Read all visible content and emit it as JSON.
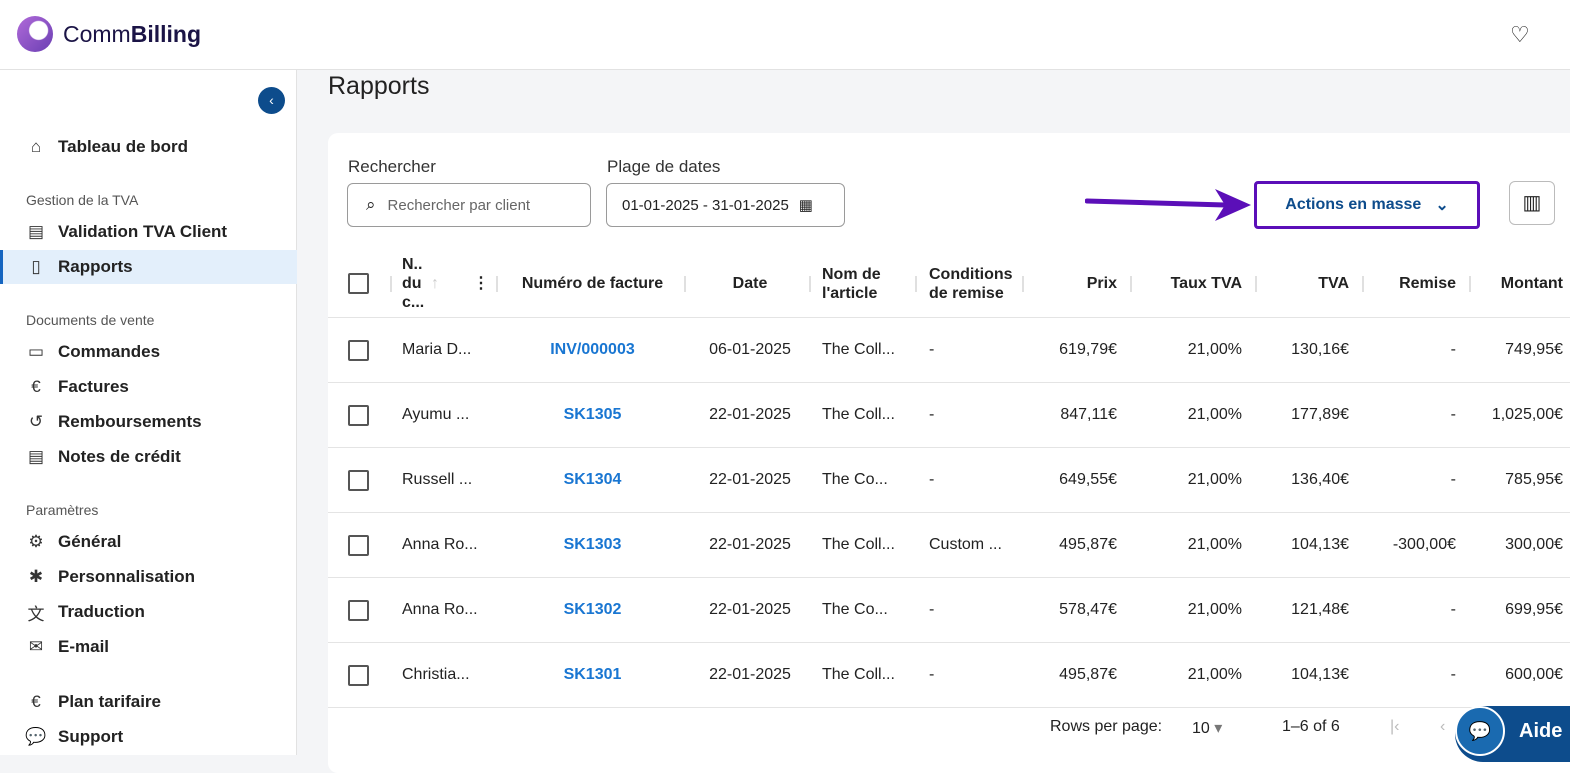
{
  "app": {
    "name_light": "Comm",
    "name_bold": "Billing"
  },
  "sidebar": {
    "dashboard": "Tableau de bord",
    "sec_tva": "Gestion de la TVA",
    "validation": "Validation TVA Client",
    "rapports": "Rapports",
    "sec_docs": "Documents de vente",
    "commandes": "Commandes",
    "factures": "Factures",
    "remboursements": "Remboursements",
    "notes": "Notes de crédit",
    "sec_params": "Paramètres",
    "general": "Général",
    "perso": "Personnalisation",
    "traduction": "Traduction",
    "email": "E-mail",
    "plan": "Plan tarifaire",
    "support": "Support"
  },
  "main": {
    "title": "Rapports",
    "search_label": "Rechercher",
    "search_placeholder": "Rechercher par client",
    "date_label": "Plage de dates",
    "date_value": "01-01-2025 - 31-01-2025",
    "bulk_actions": "Actions en masse"
  },
  "table": {
    "headers": [
      "N.. du c...",
      "Numéro de facture",
      "Date",
      "Nom de l'article",
      "Conditions de remise",
      "Prix",
      "Taux TVA",
      "TVA",
      "Remise",
      "Montant"
    ],
    "header_name_lines": [
      "N..",
      "du",
      "c..."
    ],
    "header_article_lines": [
      "Nom de",
      "l'article"
    ],
    "header_cond_lines": [
      "Conditions",
      "de remise"
    ],
    "rows": [
      [
        "Maria D...",
        "INV/000003",
        "06-01-2025",
        "The Coll...",
        "-",
        "619,79€",
        "21,00%",
        "130,16€",
        "-",
        "749,95€"
      ],
      [
        "Ayumu ...",
        "SK1305",
        "22-01-2025",
        "The Coll...",
        "-",
        "847,11€",
        "21,00%",
        "177,89€",
        "-",
        "1,025,00€"
      ],
      [
        "Russell ...",
        "SK1304",
        "22-01-2025",
        "The Co...",
        "-",
        "649,55€",
        "21,00%",
        "136,40€",
        "-",
        "785,95€"
      ],
      [
        "Anna Ro...",
        "SK1303",
        "22-01-2025",
        "The Coll...",
        "Custom ...",
        "495,87€",
        "21,00%",
        "104,13€",
        "-300,00€",
        "300,00€"
      ],
      [
        "Anna Ro...",
        "SK1302",
        "22-01-2025",
        "The Co...",
        "-",
        "578,47€",
        "21,00%",
        "121,48€",
        "-",
        "699,95€"
      ],
      [
        "Christia...",
        "SK1301",
        "22-01-2025",
        "The Coll...",
        "-",
        "495,87€",
        "21,00%",
        "104,13€",
        "-",
        "600,00€"
      ]
    ]
  },
  "pagination": {
    "rows_label": "Rows per page:",
    "rows_value": "10",
    "range": "1–6 of 6"
  },
  "help": {
    "label": "Aide"
  },
  "colors": {
    "accent": "#0d4c8c",
    "link": "#1976d2",
    "highlight": "#5b0fb8"
  }
}
